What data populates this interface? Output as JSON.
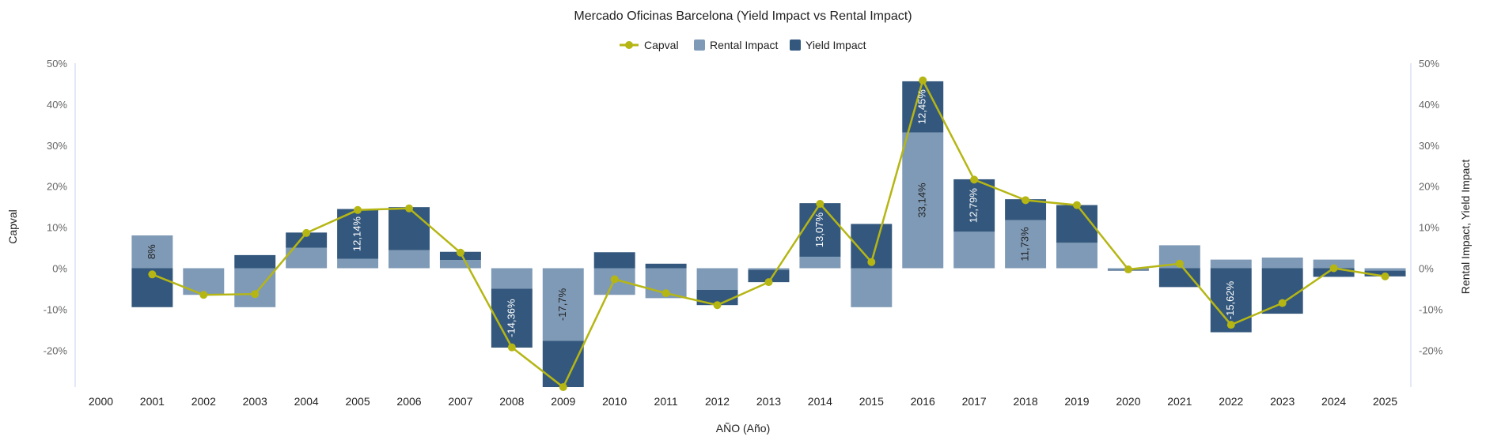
{
  "chart_data": {
    "type": "bar",
    "title": "Mercado Oficinas Barcelona (Yield Impact vs Rental Impact)",
    "xlabel": "AÑO (Año)",
    "ylabel_left": "Capval",
    "ylabel_right": "Rental Impact, Yield Impact",
    "ylim": [
      -29,
      50
    ],
    "yticks": [
      "50%",
      "40%",
      "30%",
      "20%",
      "10%",
      "0%",
      "-10%",
      "-20%"
    ],
    "ytick_values": [
      50,
      40,
      30,
      20,
      10,
      0,
      -10,
      -20
    ],
    "legend_position": "top-center",
    "categories": [
      "2000",
      "2001",
      "2002",
      "2003",
      "2004",
      "2005",
      "2006",
      "2007",
      "2008",
      "2009",
      "2010",
      "2011",
      "2012",
      "2013",
      "2014",
      "2015",
      "2016",
      "2017",
      "2018",
      "2019",
      "2020",
      "2021",
      "2022",
      "2023",
      "2024",
      "2025"
    ],
    "series": [
      {
        "name": "Capval",
        "kind": "line",
        "color": "#b5b614",
        "values": [
          null,
          -1.5,
          -6.5,
          -6.3,
          8.6,
          14.2,
          14.6,
          3.8,
          -19.3,
          -29,
          -2.7,
          -6.1,
          -9,
          -3.4,
          15.7,
          1.5,
          45.8,
          21.6,
          16.6,
          15.4,
          -0.3,
          1.1,
          -13.8,
          -8.5,
          0,
          -2
        ]
      },
      {
        "name": "Rental Impact",
        "kind": "bar",
        "color": "#7f9ab6",
        "values": [
          null,
          8,
          -6.5,
          -9.5,
          5,
          2.3,
          4.4,
          2,
          -5,
          -17.7,
          -6.5,
          -7.3,
          -5.3,
          -0.4,
          2.8,
          -9.5,
          33.14,
          8.9,
          11.73,
          6.2,
          -0.4,
          5.6,
          2.1,
          2.6,
          2.1,
          -0.6
        ]
      },
      {
        "name": "Yield Impact",
        "kind": "bar",
        "color": "#34587d",
        "values": [
          null,
          -9.5,
          0,
          3.2,
          3.7,
          12.14,
          10.5,
          2,
          -14.36,
          -11.3,
          3.9,
          1.1,
          -3.7,
          -3,
          13.07,
          10.8,
          12.45,
          12.79,
          5.1,
          9.2,
          -0.2,
          -4.6,
          -15.62,
          -11.1,
          -2.1,
          -1.4
        ]
      }
    ],
    "data_labels": [
      {
        "category": "2001",
        "series": "Rental Impact",
        "text": "8%"
      },
      {
        "category": "2005",
        "series": "Yield Impact",
        "text": "12,14%"
      },
      {
        "category": "2008",
        "series": "Yield Impact",
        "text": "-14,36%"
      },
      {
        "category": "2009",
        "series": "Rental Impact",
        "text": "-17,7%"
      },
      {
        "category": "2014",
        "series": "Yield Impact",
        "text": "13,07%"
      },
      {
        "category": "2016",
        "series": "Rental Impact",
        "text": "33,14%"
      },
      {
        "category": "2016",
        "series": "Yield Impact",
        "text": "12,45%"
      },
      {
        "category": "2017",
        "series": "Yield Impact",
        "text": "12,79%"
      },
      {
        "category": "2018",
        "series": "Rental Impact",
        "text": "11,73%"
      },
      {
        "category": "2022",
        "series": "Yield Impact",
        "text": "-15,62%"
      }
    ],
    "axis_color": "#c5d3e8"
  }
}
